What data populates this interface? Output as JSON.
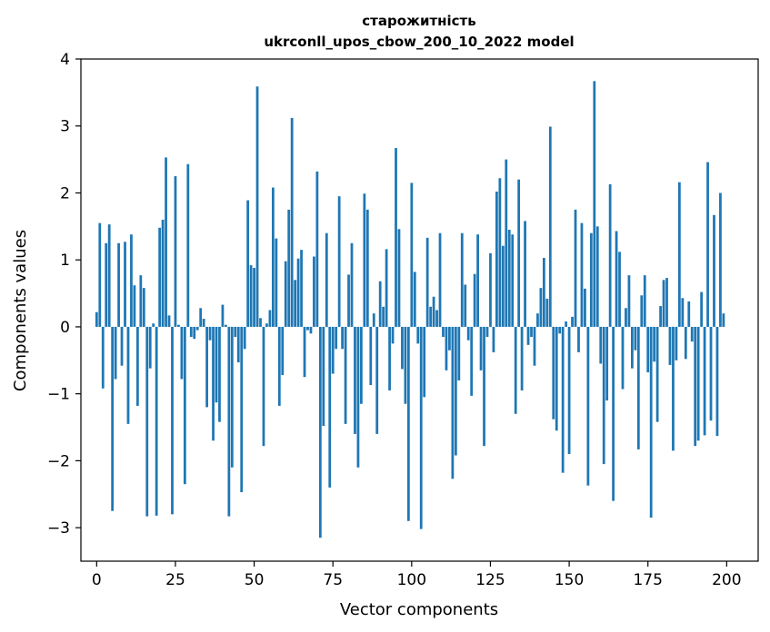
{
  "chart_data": {
    "type": "bar",
    "title_line1": "старожитність",
    "title_line2": "ukrconll_upos_cbow_200_10_2022 model",
    "xlabel": "Vector components",
    "ylabel": "Components values",
    "xlim": [
      -5,
      210
    ],
    "ylim": [
      -3.5,
      4
    ],
    "xticks": [
      0,
      25,
      50,
      75,
      100,
      125,
      150,
      175,
      200
    ],
    "yticks": [
      -3,
      -2,
      -1,
      0,
      1,
      2,
      3,
      4
    ],
    "xtick_labels": [
      "0",
      "25",
      "50",
      "75",
      "100",
      "125",
      "150",
      "175",
      "200"
    ],
    "ytick_labels": [
      "−3",
      "−2",
      "−1",
      "0",
      "1",
      "2",
      "3",
      "4"
    ],
    "bar_color": "#1f77b4",
    "grid": false,
    "values": [
      0.22,
      1.55,
      -0.92,
      1.25,
      1.53,
      -2.75,
      -0.78,
      1.25,
      -0.58,
      1.27,
      -1.45,
      1.38,
      0.62,
      -1.18,
      0.77,
      0.58,
      -2.83,
      -0.62,
      0.05,
      -2.82,
      1.48,
      1.6,
      2.53,
      0.17,
      -2.8,
      2.25,
      0.03,
      -0.78,
      -2.35,
      2.43,
      -0.15,
      -0.18,
      -0.05,
      0.28,
      0.12,
      -1.2,
      -0.2,
      -1.7,
      -1.13,
      -1.42,
      0.33,
      0.03,
      -2.83,
      -2.1,
      -0.15,
      -0.53,
      -2.47,
      -0.33,
      1.89,
      0.92,
      0.88,
      3.59,
      0.13,
      -1.78,
      0.05,
      0.25,
      2.08,
      1.32,
      -1.18,
      -0.72,
      0.98,
      1.75,
      3.12,
      0.7,
      1.02,
      1.15,
      -0.75,
      -0.05,
      -0.1,
      1.05,
      2.32,
      -3.15,
      -1.48,
      1.4,
      -2.4,
      -0.7,
      -0.33,
      1.95,
      -0.33,
      -1.45,
      0.78,
      1.25,
      -1.6,
      -2.1,
      -1.15,
      1.99,
      1.75,
      -0.87,
      0.2,
      -1.6,
      0.68,
      0.3,
      1.16,
      -0.95,
      -0.25,
      2.67,
      1.46,
      -0.63,
      -1.15,
      -2.9,
      2.15,
      0.82,
      -0.25,
      -3.02,
      -1.05,
      1.33,
      0.3,
      0.45,
      0.25,
      1.4,
      -0.15,
      -0.65,
      -0.35,
      -2.27,
      -1.92,
      -0.8,
      1.4,
      0.63,
      -0.2,
      -1.03,
      0.79,
      1.38,
      -0.65,
      -1.78,
      -0.15,
      1.1,
      -0.38,
      2.02,
      2.22,
      1.21,
      2.5,
      1.45,
      1.38,
      -1.3,
      2.2,
      -0.95,
      1.58,
      -0.27,
      -0.15,
      -0.58,
      0.2,
      0.58,
      1.03,
      0.42,
      2.99,
      -1.38,
      -1.55,
      -0.1,
      -2.18,
      0.08,
      -1.9,
      0.15,
      1.75,
      -0.38,
      1.55,
      0.57,
      -2.37,
      1.4,
      3.67,
      1.5,
      -0.55,
      -2.05,
      -1.1,
      2.13,
      -2.6,
      1.43,
      1.12,
      -0.93,
      0.28,
      0.77,
      -0.62,
      -0.35,
      -1.83,
      0.47,
      0.77,
      -0.68,
      -2.85,
      -0.52,
      -1.42,
      0.31,
      0.7,
      0.73,
      -0.57,
      -1.85,
      -0.5,
      2.16,
      0.43,
      -0.48,
      0.38,
      -0.22,
      -1.78,
      -1.7,
      0.52,
      -1.62,
      2.46,
      -1.4,
      1.67,
      -1.63,
      2.0,
      0.2
    ]
  }
}
